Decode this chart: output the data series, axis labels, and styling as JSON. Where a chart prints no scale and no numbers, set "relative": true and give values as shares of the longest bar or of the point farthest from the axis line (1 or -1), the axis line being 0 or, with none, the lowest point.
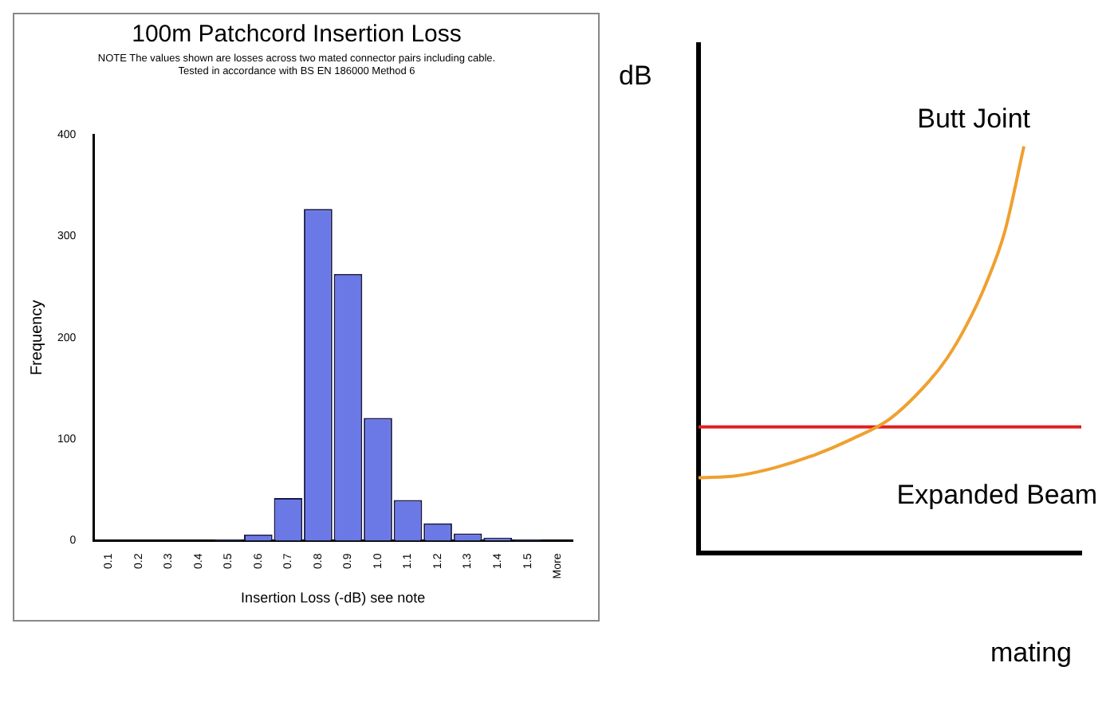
{
  "chart_data": [
    {
      "type": "bar",
      "title": "100m Patchcord Insertion Loss",
      "subtitle": "NOTE The values shown are losses across two mated connector pairs including cable.",
      "annotations": [
        "Tested in accordance with BS EN 186000 Method 6"
      ],
      "xlabel": "Insertion Loss (-dB) see note",
      "ylabel": "Frequency",
      "categories": [
        "0.1",
        "0.2",
        "0.3",
        "0.4",
        "0.5",
        "0.6",
        "0.7",
        "0.8",
        "0.9",
        "1.0",
        "1.1",
        "1.2",
        "1.3",
        "1.4",
        "1.5",
        "More"
      ],
      "values": [
        0,
        0,
        0,
        0,
        1,
        6,
        42,
        327,
        263,
        121,
        40,
        17,
        7,
        3,
        1,
        0
      ],
      "color": "#6b79e6",
      "ylim": [
        0,
        400
      ],
      "yticks": [
        0,
        100,
        200,
        300,
        400
      ],
      "grid": false,
      "legend": false
    },
    {
      "type": "line",
      "relative": true,
      "xlabel": "mating",
      "ylabel": "dB",
      "categories": [
        null,
        null,
        null,
        null,
        null,
        null,
        null,
        null,
        null,
        null,
        null,
        null,
        null,
        null,
        null,
        null,
        null,
        null,
        null,
        null,
        null
      ],
      "series": [
        {
          "name": "Butt Joint",
          "color": "#f0a030",
          "values": [
            0.185,
            null,
            0.19,
            null,
            0.21,
            null,
            0.24,
            null,
            0.28,
            null,
            0.33,
            null,
            0.42,
            0.48,
            0.56,
            0.66,
            0.79,
            1.0,
            null,
            null,
            null
          ]
        },
        {
          "name": "Expanded Beam",
          "color": "#e02020",
          "values": [
            0.31,
            0.31,
            0.31,
            0.31,
            0.31,
            0.31,
            0.31,
            0.31,
            0.31,
            0.31,
            0.31,
            0.31,
            0.31,
            0.31,
            0.31,
            0.31,
            0.31,
            0.31,
            0.31,
            0.31,
            0.31
          ]
        }
      ],
      "grid": false,
      "legend": false,
      "marker": "none",
      "line_style": "solid"
    }
  ]
}
